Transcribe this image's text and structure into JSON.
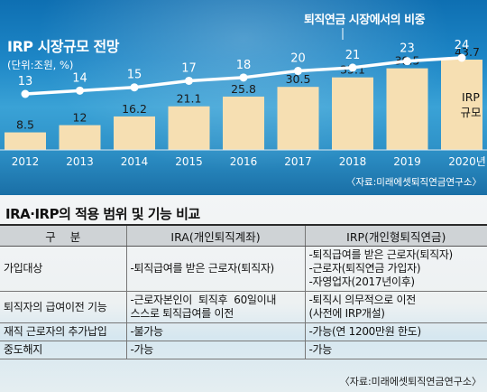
{
  "chart_data": {
    "type": "bar",
    "title": "IRP 시장규모 전망",
    "subtitle": "(단위:조원, %)",
    "categories": [
      "2012",
      "2013",
      "2014",
      "2015",
      "2016",
      "2017",
      "2018",
      "2019",
      "2020년"
    ],
    "values": [
      8.5,
      12,
      16.2,
      21.1,
      25.8,
      30.5,
      35.1,
      39.5,
      43.7
    ],
    "value_labels": [
      "8.5",
      "12",
      "16.2",
      "21.1",
      "25.8",
      "30.5",
      "35.1",
      "39.5",
      "43.7"
    ],
    "bar_label": "IRP\n규모",
    "line_series": {
      "name": "퇴직연금 시장에서의 비중",
      "values": [
        13,
        14,
        15,
        17,
        18,
        20,
        21,
        23,
        24
      ]
    },
    "ylim": [
      0,
      50
    ],
    "source": "〈자료:미래에셋퇴직연금연구소〉",
    "colors": {
      "bar": "#f6dfb2",
      "line": "#ffffff"
    }
  },
  "table": {
    "title": "IRA·IRP의 적용 범위 및 기능 비교",
    "headers": [
      "구    분",
      "IRA(개인퇴직계좌)",
      "IRP(개인형퇴직연금)"
    ],
    "rows": [
      {
        "label": "가입대상",
        "ira": [
          "-퇴직급여를 받은 근로자(퇴직자)"
        ],
        "irp": [
          "-퇴직급여를 받은 근로자(퇴직자)",
          "-근로자(퇴직연금 가입자)",
          "-자영업자(2017년이후)"
        ]
      },
      {
        "label": "퇴직자의 급여이전 기능",
        "ira": [
          "-근로자본인이  퇴직후  60일이내",
          "스스로 퇴직급여를 이전"
        ],
        "irp": [
          "-퇴직시 의무적으로 이전",
          "(사전에 IRP개설)"
        ]
      },
      {
        "label": "재직 근로자의 추가납입",
        "ira": [
          "-불가능"
        ],
        "irp": [
          "-가능(연 1200만원 한도)"
        ]
      },
      {
        "label": "중도해지",
        "ira": [
          "-가능"
        ],
        "irp": [
          "-가능"
        ]
      }
    ],
    "source": "〈자료:미래에셋퇴직연금연구소〉"
  }
}
